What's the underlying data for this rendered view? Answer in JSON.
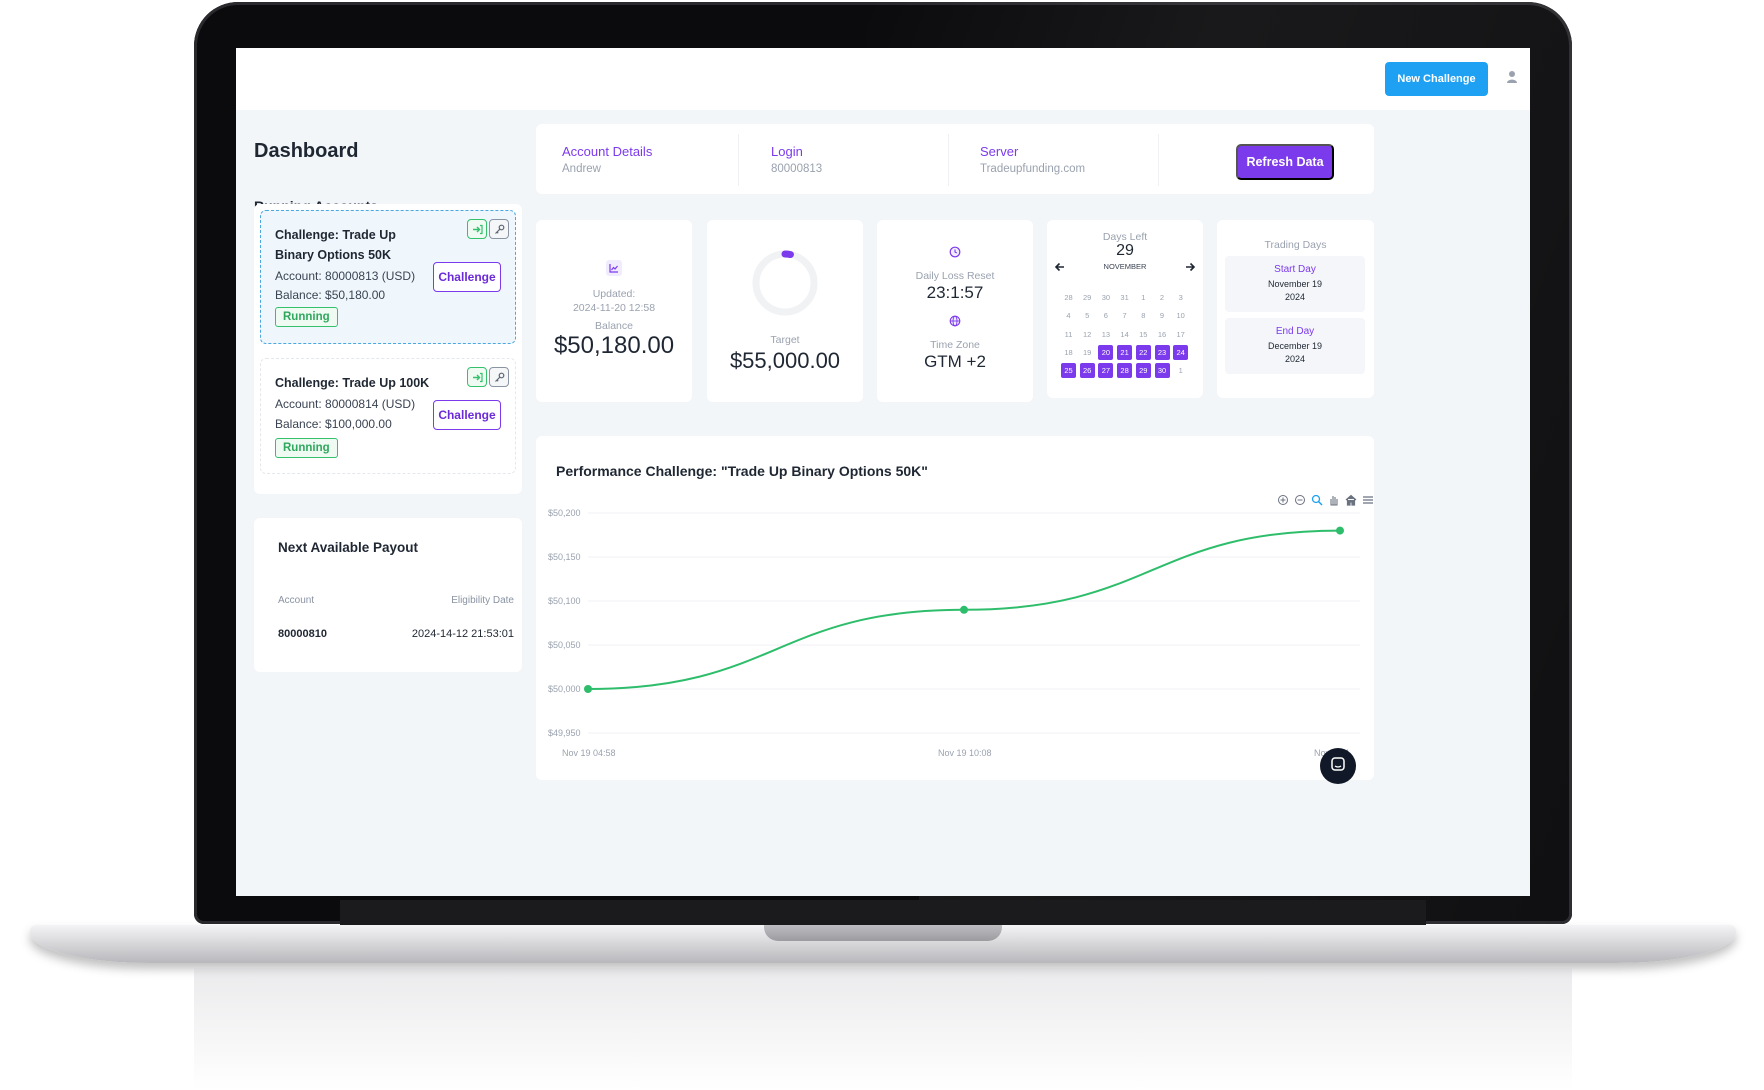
{
  "topbar": {
    "new_challenge_label": "New Challenge"
  },
  "page": {
    "title": "Dashboard",
    "running_accounts_label": "Running Accounts"
  },
  "accounts": [
    {
      "name": "Challenge: Trade Up Binary Options 50K",
      "account": "Account: 80000813 (USD)",
      "balance": "Balance: $50,180.00",
      "status": "Running",
      "button": "Challenge"
    },
    {
      "name": "Challenge: Trade Up 100K",
      "account": "Account: 80000814 (USD)",
      "balance": "Balance: $100,000.00",
      "status": "Running",
      "button": "Challenge"
    }
  ],
  "payout": {
    "title": "Next Available Payout",
    "col_account": "Account",
    "col_date": "Eligibility Date",
    "row_account": "80000810",
    "row_date": "2024-14-12 21:53:01"
  },
  "details": {
    "account_label": "Account Details",
    "account_value": "Andrew",
    "login_label": "Login",
    "login_value": "80000813",
    "server_label": "Server",
    "server_value": "Tradeupfunding.com",
    "refresh_label": "Refresh Data"
  },
  "stats": {
    "updated_label": "Updated:",
    "updated_value": "2024-11-20 12:58",
    "balance_label": "Balance",
    "balance_value": "$50,180.00",
    "target_label": "Target",
    "target_value": "$55,000.00",
    "target_progress": 0.03,
    "loss_reset_label": "Daily Loss Reset",
    "loss_reset_value": "23:1:57",
    "timezone_label": "Time Zone",
    "timezone_value": "GTM +2"
  },
  "calendar": {
    "days_left_label": "Days Left",
    "days_left_value": "29",
    "month": "NOVEMBER",
    "rows": [
      [
        "28",
        "29",
        "30",
        "31",
        "1",
        "2",
        "3"
      ],
      [
        "4",
        "5",
        "6",
        "7",
        "8",
        "9",
        "10"
      ],
      [
        "11",
        "12",
        "13",
        "14",
        "15",
        "16",
        "17"
      ],
      [
        "18",
        "19",
        "20",
        "21",
        "22",
        "23",
        "24"
      ],
      [
        "25",
        "26",
        "27",
        "28",
        "29",
        "30",
        "1"
      ]
    ],
    "selected": [
      "20",
      "21",
      "22",
      "23",
      "24",
      "25",
      "26",
      "27",
      "28",
      "29",
      "30"
    ]
  },
  "trading_days": {
    "title": "Trading Days",
    "start_label": "Start Day",
    "start_date_line1": "November 19",
    "start_date_line2": "2024",
    "end_label": "End Day",
    "end_date_line1": "December 19",
    "end_date_line2": "2024"
  },
  "chart_title": "Performance Challenge: \"Trade Up Binary Options 50K\"",
  "chart_data": {
    "type": "line",
    "title": "Performance Challenge: \"Trade Up Binary Options 50K\"",
    "xlabel": "",
    "ylabel": "",
    "x": [
      "Nov 19 04:58",
      "Nov 19 10:08",
      "Nov 19 1..."
    ],
    "x_tick_labels": [
      "Nov 19 04:58",
      "Nov 19 10:08",
      "Nov 19 1"
    ],
    "series": [
      {
        "values": [
          50000,
          50090,
          50180
        ]
      }
    ],
    "y_tick_labels": [
      "$50,200",
      "$50,150",
      "$50,100",
      "$50,050",
      "$50,000",
      "$49,950"
    ],
    "ylim": [
      49950,
      50200
    ],
    "grid": true,
    "line_color": "#2ebd6b"
  },
  "icons": {
    "user": "user-icon",
    "chart_small": "chart-icon",
    "clock": "clock-icon",
    "globe": "globe-icon",
    "login": "login-icon",
    "key": "key-icon",
    "chat": "chat-icon"
  },
  "colors": {
    "accent": "#7c3aed",
    "primary": "#1ea1f2",
    "success": "#35c06c"
  }
}
